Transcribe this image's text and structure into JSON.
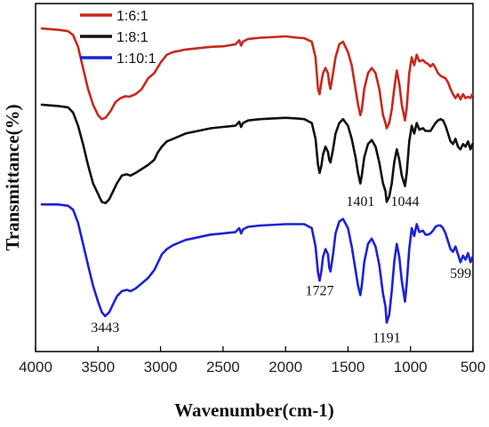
{
  "chart_data": {
    "type": "line",
    "xlabel": "Wavenumber(cm-1)",
    "ylabel": "Transmittance(%)",
    "xlim": [
      4000,
      500
    ],
    "x_reversed": true,
    "xticks": [
      4000,
      3500,
      3000,
      2500,
      2000,
      1500,
      1000,
      500
    ],
    "y_ticks_shown": false,
    "grid": false,
    "legend": {
      "placement": "top-left"
    },
    "series": [
      {
        "name": "1:6:1",
        "color": "#c8281e",
        "points": [
          [
            3950,
            0.89
          ],
          [
            3820,
            0.885
          ],
          [
            3740,
            0.88
          ],
          [
            3700,
            0.865
          ],
          [
            3660,
            0.82
          ],
          [
            3620,
            0.74
          ],
          [
            3580,
            0.66
          ],
          [
            3540,
            0.6
          ],
          [
            3500,
            0.56
          ],
          [
            3470,
            0.545
          ],
          [
            3440,
            0.55
          ],
          [
            3400,
            0.575
          ],
          [
            3360,
            0.61
          ],
          [
            3320,
            0.625
          ],
          [
            3280,
            0.632
          ],
          [
            3250,
            0.63
          ],
          [
            3200,
            0.64
          ],
          [
            3150,
            0.66
          ],
          [
            3100,
            0.7
          ],
          [
            3050,
            0.72
          ],
          [
            3000,
            0.76
          ],
          [
            2950,
            0.79
          ],
          [
            2900,
            0.8
          ],
          [
            2800,
            0.81
          ],
          [
            2700,
            0.815
          ],
          [
            2600,
            0.82
          ],
          [
            2500,
            0.822
          ],
          [
            2400,
            0.83
          ],
          [
            2370,
            0.845
          ],
          [
            2355,
            0.825
          ],
          [
            2340,
            0.84
          ],
          [
            2300,
            0.85
          ],
          [
            2200,
            0.855
          ],
          [
            2000,
            0.86
          ],
          [
            1900,
            0.855
          ],
          [
            1850,
            0.853
          ],
          [
            1790,
            0.84
          ],
          [
            1760,
            0.78
          ],
          [
            1740,
            0.66
          ],
          [
            1727,
            0.64
          ],
          [
            1715,
            0.68
          ],
          [
            1700,
            0.72
          ],
          [
            1680,
            0.74
          ],
          [
            1660,
            0.72
          ],
          [
            1650,
            0.68
          ],
          [
            1640,
            0.66
          ],
          [
            1620,
            0.72
          ],
          [
            1600,
            0.78
          ],
          [
            1570,
            0.83
          ],
          [
            1540,
            0.84
          ],
          [
            1500,
            0.8
          ],
          [
            1470,
            0.75
          ],
          [
            1440,
            0.66
          ],
          [
            1420,
            0.6
          ],
          [
            1401,
            0.56
          ],
          [
            1390,
            0.58
          ],
          [
            1370,
            0.66
          ],
          [
            1340,
            0.72
          ],
          [
            1310,
            0.74
          ],
          [
            1280,
            0.72
          ],
          [
            1250,
            0.66
          ],
          [
            1220,
            0.56
          ],
          [
            1200,
            0.53
          ],
          [
            1191,
            0.51
          ],
          [
            1170,
            0.53
          ],
          [
            1150,
            0.58
          ],
          [
            1130,
            0.66
          ],
          [
            1110,
            0.73
          ],
          [
            1090,
            0.68
          ],
          [
            1070,
            0.6
          ],
          [
            1044,
            0.54
          ],
          [
            1030,
            0.59
          ],
          [
            1010,
            0.72
          ],
          [
            990,
            0.78
          ],
          [
            970,
            0.75
          ],
          [
            950,
            0.79
          ],
          [
            930,
            0.765
          ],
          [
            900,
            0.77
          ],
          [
            880,
            0.76
          ],
          [
            860,
            0.755
          ],
          [
            840,
            0.745
          ],
          [
            820,
            0.755
          ],
          [
            800,
            0.74
          ],
          [
            780,
            0.72
          ],
          [
            760,
            0.71
          ],
          [
            740,
            0.705
          ],
          [
            720,
            0.7
          ],
          [
            700,
            0.685
          ],
          [
            680,
            0.66
          ],
          [
            660,
            0.64
          ],
          [
            640,
            0.625
          ],
          [
            620,
            0.64
          ],
          [
            600,
            0.62
          ],
          [
            580,
            0.64
          ],
          [
            560,
            0.625
          ],
          [
            540,
            0.63
          ],
          [
            520,
            0.625
          ],
          [
            505,
            0.64
          ]
        ]
      },
      {
        "name": "1:8:1",
        "color": "#111111",
        "points": [
          [
            3950,
            0.6
          ],
          [
            3820,
            0.595
          ],
          [
            3740,
            0.59
          ],
          [
            3700,
            0.57
          ],
          [
            3660,
            0.52
          ],
          [
            3620,
            0.45
          ],
          [
            3580,
            0.37
          ],
          [
            3540,
            0.3
          ],
          [
            3500,
            0.26
          ],
          [
            3470,
            0.23
          ],
          [
            3440,
            0.225
          ],
          [
            3410,
            0.24
          ],
          [
            3380,
            0.27
          ],
          [
            3350,
            0.3
          ],
          [
            3310,
            0.33
          ],
          [
            3270,
            0.335
          ],
          [
            3240,
            0.33
          ],
          [
            3200,
            0.34
          ],
          [
            3150,
            0.355
          ],
          [
            3100,
            0.37
          ],
          [
            3050,
            0.39
          ],
          [
            3020,
            0.42
          ],
          [
            2990,
            0.44
          ],
          [
            2950,
            0.46
          ],
          [
            2900,
            0.47
          ],
          [
            2850,
            0.48
          ],
          [
            2800,
            0.49
          ],
          [
            2700,
            0.5
          ],
          [
            2600,
            0.51
          ],
          [
            2500,
            0.515
          ],
          [
            2400,
            0.52
          ],
          [
            2370,
            0.535
          ],
          [
            2355,
            0.515
          ],
          [
            2340,
            0.53
          ],
          [
            2300,
            0.54
          ],
          [
            2200,
            0.545
          ],
          [
            2000,
            0.55
          ],
          [
            1900,
            0.547
          ],
          [
            1850,
            0.545
          ],
          [
            1790,
            0.53
          ],
          [
            1760,
            0.47
          ],
          [
            1740,
            0.37
          ],
          [
            1727,
            0.34
          ],
          [
            1712,
            0.37
          ],
          [
            1700,
            0.41
          ],
          [
            1680,
            0.44
          ],
          [
            1660,
            0.42
          ],
          [
            1650,
            0.39
          ],
          [
            1640,
            0.38
          ],
          [
            1620,
            0.43
          ],
          [
            1600,
            0.49
          ],
          [
            1570,
            0.53
          ],
          [
            1540,
            0.545
          ],
          [
            1500,
            0.52
          ],
          [
            1470,
            0.47
          ],
          [
            1440,
            0.4
          ],
          [
            1420,
            0.34
          ],
          [
            1401,
            0.3
          ],
          [
            1390,
            0.33
          ],
          [
            1370,
            0.4
          ],
          [
            1340,
            0.45
          ],
          [
            1310,
            0.465
          ],
          [
            1280,
            0.44
          ],
          [
            1250,
            0.38
          ],
          [
            1220,
            0.3
          ],
          [
            1200,
            0.27
          ],
          [
            1191,
            0.23
          ],
          [
            1170,
            0.25
          ],
          [
            1150,
            0.3
          ],
          [
            1130,
            0.38
          ],
          [
            1110,
            0.43
          ],
          [
            1090,
            0.39
          ],
          [
            1070,
            0.33
          ],
          [
            1044,
            0.29
          ],
          [
            1030,
            0.34
          ],
          [
            1010,
            0.46
          ],
          [
            990,
            0.52
          ],
          [
            970,
            0.49
          ],
          [
            950,
            0.53
          ],
          [
            930,
            0.505
          ],
          [
            900,
            0.51
          ],
          [
            880,
            0.5
          ],
          [
            860,
            0.5
          ],
          [
            840,
            0.5
          ],
          [
            820,
            0.515
          ],
          [
            800,
            0.53
          ],
          [
            780,
            0.54
          ],
          [
            760,
            0.545
          ],
          [
            740,
            0.54
          ],
          [
            720,
            0.52
          ],
          [
            700,
            0.49
          ],
          [
            680,
            0.46
          ],
          [
            660,
            0.45
          ],
          [
            640,
            0.47
          ],
          [
            620,
            0.44
          ],
          [
            600,
            0.43
          ],
          [
            580,
            0.45
          ],
          [
            560,
            0.44
          ],
          [
            540,
            0.46
          ],
          [
            520,
            0.43
          ],
          [
            505,
            0.45
          ]
        ]
      },
      {
        "name": "1:10:1",
        "color": "#1c22d6",
        "points": [
          [
            3950,
            0.22
          ],
          [
            3820,
            0.22
          ],
          [
            3740,
            0.215
          ],
          [
            3700,
            0.2
          ],
          [
            3660,
            0.15
          ],
          [
            3620,
            0.07
          ],
          [
            3580,
            -0.01
          ],
          [
            3540,
            -0.09
          ],
          [
            3500,
            -0.15
          ],
          [
            3470,
            -0.19
          ],
          [
            3443,
            -0.205
          ],
          [
            3410,
            -0.19
          ],
          [
            3380,
            -0.16
          ],
          [
            3350,
            -0.13
          ],
          [
            3310,
            -0.11
          ],
          [
            3270,
            -0.105
          ],
          [
            3240,
            -0.11
          ],
          [
            3200,
            -0.1
          ],
          [
            3150,
            -0.08
          ],
          [
            3100,
            -0.06
          ],
          [
            3050,
            -0.03
          ],
          [
            3020,
            0.0
          ],
          [
            2990,
            0.03
          ],
          [
            2950,
            0.05
          ],
          [
            2900,
            0.065
          ],
          [
            2850,
            0.075
          ],
          [
            2800,
            0.085
          ],
          [
            2700,
            0.095
          ],
          [
            2600,
            0.105
          ],
          [
            2500,
            0.11
          ],
          [
            2400,
            0.115
          ],
          [
            2370,
            0.13
          ],
          [
            2355,
            0.11
          ],
          [
            2340,
            0.125
          ],
          [
            2300,
            0.135
          ],
          [
            2200,
            0.14
          ],
          [
            2000,
            0.145
          ],
          [
            1900,
            0.145
          ],
          [
            1850,
            0.145
          ],
          [
            1790,
            0.13
          ],
          [
            1760,
            0.06
          ],
          [
            1740,
            -0.04
          ],
          [
            1727,
            -0.07
          ],
          [
            1712,
            -0.03
          ],
          [
            1700,
            0.02
          ],
          [
            1680,
            0.05
          ],
          [
            1660,
            0.03
          ],
          [
            1650,
            -0.02
          ],
          [
            1640,
            -0.035
          ],
          [
            1620,
            0.03
          ],
          [
            1600,
            0.11
          ],
          [
            1570,
            0.155
          ],
          [
            1540,
            0.165
          ],
          [
            1500,
            0.13
          ],
          [
            1470,
            0.06
          ],
          [
            1440,
            -0.03
          ],
          [
            1420,
            -0.09
          ],
          [
            1401,
            -0.125
          ],
          [
            1390,
            -0.09
          ],
          [
            1370,
            0.0
          ],
          [
            1340,
            0.07
          ],
          [
            1310,
            0.09
          ],
          [
            1280,
            0.06
          ],
          [
            1250,
            -0.01
          ],
          [
            1220,
            -0.12
          ],
          [
            1200,
            -0.17
          ],
          [
            1191,
            -0.23
          ],
          [
            1170,
            -0.2
          ],
          [
            1150,
            -0.11
          ],
          [
            1130,
            0.0
          ],
          [
            1110,
            0.07
          ],
          [
            1090,
            0.02
          ],
          [
            1070,
            -0.07
          ],
          [
            1044,
            -0.15
          ],
          [
            1030,
            -0.08
          ],
          [
            1010,
            0.05
          ],
          [
            990,
            0.13
          ],
          [
            970,
            0.1
          ],
          [
            950,
            0.145
          ],
          [
            930,
            0.115
          ],
          [
            900,
            0.12
          ],
          [
            880,
            0.105
          ],
          [
            860,
            0.105
          ],
          [
            840,
            0.11
          ],
          [
            820,
            0.12
          ],
          [
            800,
            0.135
          ],
          [
            780,
            0.14
          ],
          [
            760,
            0.14
          ],
          [
            740,
            0.13
          ],
          [
            720,
            0.11
          ],
          [
            700,
            0.08
          ],
          [
            680,
            0.05
          ],
          [
            660,
            0.04
          ],
          [
            640,
            0.06
          ],
          [
            620,
            0.03
          ],
          [
            600,
            0.0
          ],
          [
            580,
            0.025
          ],
          [
            560,
            0.01
          ],
          [
            540,
            0.035
          ],
          [
            520,
            0.0
          ],
          [
            505,
            0.02
          ]
        ]
      }
    ],
    "annotations": [
      {
        "text": "3443",
        "x": 3443,
        "y": -0.265
      },
      {
        "text": "1727",
        "x": 1727,
        "y": -0.125
      },
      {
        "text": "1401",
        "x": 1401,
        "y": 0.215
      },
      {
        "text": "1044",
        "x": 1044,
        "y": 0.215
      },
      {
        "text": "1191",
        "x": 1191,
        "y": -0.305
      },
      {
        "text": "599",
        "x": 599,
        "y": -0.06
      }
    ]
  }
}
